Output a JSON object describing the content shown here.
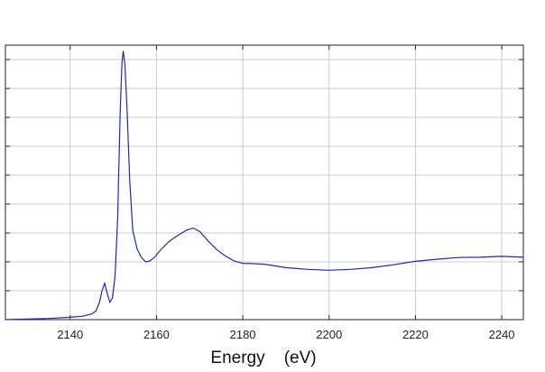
{
  "chart_data": {
    "type": "line",
    "title": "",
    "xlabel": "Energy    (eV)",
    "ylabel": "",
    "xlim": [
      2125,
      2245
    ],
    "ylim": [
      0,
      9.5
    ],
    "grid": true,
    "x_ticks": [
      2140,
      2160,
      2180,
      2200,
      2220,
      2240
    ],
    "x_tick_labels": [
      "2140",
      "2160",
      "2180",
      "2200",
      "2220",
      "2240"
    ],
    "y_tick_values": [
      1,
      2,
      3,
      4,
      5,
      6,
      7,
      8,
      9
    ],
    "line_color": "#2323c8",
    "series": [
      {
        "x": [
          2125,
          2130,
          2135,
          2140,
          2143,
          2145,
          2146,
          2146.8,
          2147.4,
          2148.0,
          2148.6,
          2149.2,
          2149.8,
          2150.4,
          2151.0,
          2151.6,
          2152.0,
          2152.3,
          2152.7,
          2153.2,
          2153.8,
          2154.5,
          2155.5,
          2156.5,
          2157.5,
          2158.5,
          2159.5,
          2161,
          2163,
          2165,
          2167,
          2168.5,
          2170,
          2172,
          2174,
          2176,
          2178,
          2180,
          2182,
          2185,
          2190,
          2195,
          2200,
          2205,
          2210,
          2215,
          2220,
          2225,
          2230,
          2235,
          2240,
          2245
        ],
        "y": [
          0.0,
          0.02,
          0.04,
          0.08,
          0.12,
          0.2,
          0.3,
          0.6,
          1.0,
          1.26,
          0.9,
          0.6,
          0.75,
          1.5,
          3.5,
          7.2,
          8.9,
          9.3,
          8.8,
          7.2,
          4.8,
          3.1,
          2.45,
          2.15,
          2.0,
          2.03,
          2.15,
          2.42,
          2.72,
          2.92,
          3.1,
          3.17,
          3.05,
          2.72,
          2.42,
          2.2,
          2.03,
          1.95,
          1.94,
          1.92,
          1.8,
          1.74,
          1.71,
          1.74,
          1.8,
          1.9,
          2.02,
          2.09,
          2.15,
          2.16,
          2.19,
          2.16
        ]
      }
    ]
  }
}
